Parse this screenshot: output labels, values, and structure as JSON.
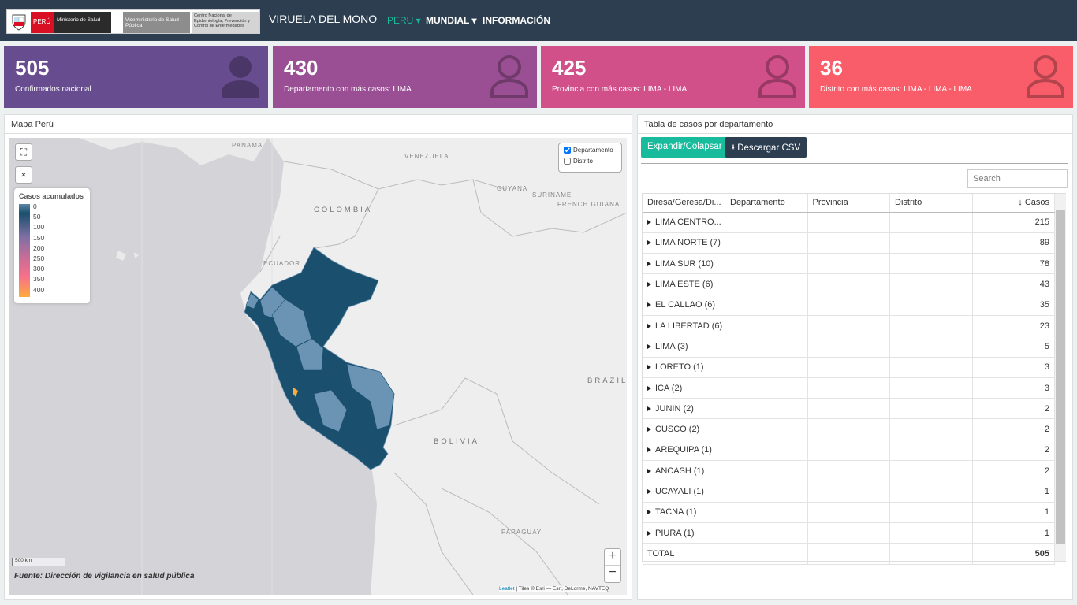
{
  "header": {
    "logo": {
      "country": "PERÚ",
      "ministry": "Ministerio de Salud",
      "vice": "Viceministerio de Salud Pública",
      "center": "Centro Nacional de Epidemiología, Prevención y Control de Enfermedades"
    },
    "title": "VIRUELA DEL MONO",
    "nav": [
      "PERU",
      "MUNDIAL",
      "INFORMACIÓN"
    ]
  },
  "cards": [
    {
      "value": 505,
      "label": "Confirmados nacional"
    },
    {
      "value": 430,
      "label": "Departamento con más casos: LIMA"
    },
    {
      "value": 425,
      "label": "Provincia con más casos: LIMA - LIMA"
    },
    {
      "value": 36,
      "label": "Distrito con más casos: LIMA - LIMA - LIMA"
    }
  ],
  "map": {
    "title": "Mapa Perú",
    "places": [
      "PANAMA",
      "VENEZUELA",
      "GUYANA",
      "SURINAME",
      "FRENCH GUIANA",
      "COLOMBIA",
      "ECUADOR",
      "BRAZIL",
      "BOLIVIA",
      "PARAGUAY"
    ],
    "legend": {
      "title": "Casos acumulados",
      "ticks": [
        0,
        50,
        100,
        150,
        200,
        250,
        300,
        350,
        400
      ]
    },
    "layers": [
      {
        "label": "Departamento",
        "checked": true
      },
      {
        "label": "Distrito",
        "checked": false
      }
    ],
    "scale": "500 km",
    "source": "Fuente: Dirección de vigilancia en salud pública",
    "zoom": [
      "+",
      "−"
    ],
    "attribution": {
      "link": "Leaflet",
      "text": "| Tiles © Esri — Esri, DeLorme, NAVTEQ"
    }
  },
  "table": {
    "title": "Tabla de casos por departamento",
    "buttons": [
      "Expandir/Colapsar",
      "Descargar CSV"
    ],
    "search_placeholder": "Search",
    "columns": [
      "Diresa/Geresa/Di...",
      "Departamento",
      "Provincia",
      "Distrito",
      "Casos"
    ],
    "rows": [
      {
        "name": "LIMA CENTRO...",
        "cases": 215
      },
      {
        "name": "LIMA NORTE (7)",
        "cases": 89
      },
      {
        "name": "LIMA SUR (10)",
        "cases": 78
      },
      {
        "name": "LIMA ESTE (6)",
        "cases": 43
      },
      {
        "name": "EL CALLAO (6)",
        "cases": 35
      },
      {
        "name": "LA LIBERTAD (6)",
        "cases": 23
      },
      {
        "name": "LIMA (3)",
        "cases": 5
      },
      {
        "name": "LORETO (1)",
        "cases": 3
      },
      {
        "name": "ICA (2)",
        "cases": 3
      },
      {
        "name": "JUNIN (2)",
        "cases": 2
      },
      {
        "name": "CUSCO (2)",
        "cases": 2
      },
      {
        "name": "AREQUIPA (1)",
        "cases": 2
      },
      {
        "name": "ANCASH (1)",
        "cases": 2
      },
      {
        "name": "UCAYALI (1)",
        "cases": 1
      },
      {
        "name": "TACNA (1)",
        "cases": 1
      },
      {
        "name": "PIURA (1)",
        "cases": 1
      }
    ],
    "total": {
      "label": "TOTAL",
      "cases": 505
    }
  }
}
